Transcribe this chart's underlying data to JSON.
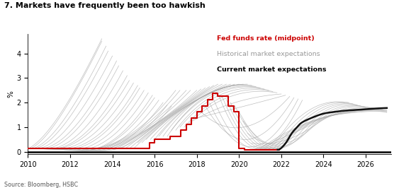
{
  "title": "7. Markets have frequently been too hawkish",
  "source": "Source: Bloomberg, HSBC",
  "legend": [
    {
      "label": "Fed funds rate (midpoint)",
      "color": "#cc0000",
      "bold": true
    },
    {
      "label": "Historical market expectations",
      "color": "#999999",
      "bold": false
    },
    {
      "label": "Current market expectations",
      "color": "#000000",
      "bold": true
    }
  ],
  "ylabel": "%",
  "xlim": [
    2010,
    2027.2
  ],
  "ylim": [
    -0.1,
    4.8
  ],
  "xticks": [
    2010,
    2012,
    2014,
    2016,
    2018,
    2020,
    2022,
    2024,
    2026
  ],
  "yticks": [
    0,
    1,
    2,
    3,
    4
  ],
  "fed_funds_rate": {
    "x": [
      2010.0,
      2015.75,
      2015.75,
      2016.0,
      2016.0,
      2016.75,
      2016.75,
      2017.25,
      2017.25,
      2017.5,
      2017.5,
      2017.75,
      2017.75,
      2018.0,
      2018.0,
      2018.25,
      2018.25,
      2018.5,
      2018.5,
      2018.75,
      2018.75,
      2019.0,
      2019.0,
      2019.5,
      2019.5,
      2019.75,
      2019.75,
      2020.0,
      2020.0,
      2020.25,
      2020.25,
      2021.9
    ],
    "y": [
      0.12,
      0.12,
      0.375,
      0.375,
      0.5,
      0.5,
      0.625,
      0.625,
      0.875,
      0.875,
      1.125,
      1.125,
      1.375,
      1.375,
      1.625,
      1.625,
      1.875,
      1.875,
      2.125,
      2.125,
      2.375,
      2.375,
      2.25,
      2.25,
      1.875,
      1.875,
      1.625,
      1.625,
      0.125,
      0.125,
      0.08,
      0.08
    ]
  },
  "current_expectations": {
    "x": [
      2021.83,
      2022.0,
      2022.25,
      2022.5,
      2022.75,
      2023.0,
      2023.5,
      2024.0,
      2024.5,
      2025.0,
      2025.5,
      2026.0,
      2026.5,
      2027.0
    ],
    "y": [
      0.08,
      0.15,
      0.4,
      0.75,
      1.0,
      1.2,
      1.4,
      1.55,
      1.62,
      1.67,
      1.7,
      1.73,
      1.76,
      1.78
    ]
  },
  "historical_fan_early": [
    [
      2010.0,
      0.12,
      2011.5,
      1.5,
      2013.5,
      4.6
    ],
    [
      2010.1,
      0.12,
      2011.5,
      1.4,
      2013.5,
      4.5
    ],
    [
      2010.2,
      0.12,
      2011.7,
      1.3,
      2013.7,
      4.3
    ],
    [
      2010.3,
      0.12,
      2011.8,
      1.2,
      2013.8,
      4.1
    ],
    [
      2010.4,
      0.12,
      2012.0,
      1.1,
      2014.0,
      3.9
    ],
    [
      2010.5,
      0.12,
      2012.2,
      1.0,
      2014.2,
      3.7
    ],
    [
      2010.6,
      0.12,
      2012.3,
      0.9,
      2014.3,
      3.5
    ],
    [
      2010.7,
      0.12,
      2012.5,
      0.8,
      2014.5,
      3.3
    ],
    [
      2010.8,
      0.12,
      2012.7,
      0.75,
      2014.7,
      3.1
    ],
    [
      2010.9,
      0.12,
      2012.8,
      0.7,
      2014.8,
      2.9
    ],
    [
      2011.0,
      0.12,
      2013.0,
      0.65,
      2015.0,
      2.8
    ],
    [
      2011.1,
      0.12,
      2013.2,
      0.6,
      2015.2,
      2.7
    ],
    [
      2011.3,
      0.12,
      2013.3,
      0.55,
      2015.3,
      2.6
    ],
    [
      2011.5,
      0.12,
      2013.5,
      0.5,
      2015.5,
      2.5
    ],
    [
      2011.7,
      0.12,
      2013.7,
      0.45,
      2015.7,
      2.4
    ],
    [
      2011.9,
      0.12,
      2013.9,
      0.4,
      2015.9,
      2.3
    ],
    [
      2012.1,
      0.12,
      2014.0,
      0.4,
      2016.0,
      2.2
    ],
    [
      2012.3,
      0.12,
      2014.2,
      0.38,
      2016.2,
      2.1
    ],
    [
      2012.5,
      0.12,
      2014.4,
      0.36,
      2016.4,
      2.0
    ],
    [
      2012.7,
      0.12,
      2014.6,
      0.34,
      2016.6,
      1.9
    ],
    [
      2012.9,
      0.12,
      2014.8,
      0.32,
      2016.8,
      1.85
    ]
  ],
  "historical_fan_mid": [
    [
      2013.0,
      0.12,
      2015.0,
      0.8,
      2017.0,
      2.5
    ],
    [
      2013.2,
      0.12,
      2015.2,
      0.85,
      2017.2,
      2.5
    ],
    [
      2013.4,
      0.12,
      2015.4,
      0.9,
      2017.5,
      2.5
    ],
    [
      2013.6,
      0.12,
      2015.6,
      0.95,
      2017.7,
      2.5
    ],
    [
      2013.8,
      0.12,
      2015.8,
      1.0,
      2018.0,
      2.5
    ],
    [
      2014.0,
      0.12,
      2016.0,
      1.1,
      2018.2,
      2.55
    ],
    [
      2014.2,
      0.12,
      2016.2,
      1.2,
      2018.4,
      2.6
    ],
    [
      2014.4,
      0.12,
      2016.4,
      1.3,
      2018.6,
      2.65
    ],
    [
      2014.6,
      0.12,
      2016.6,
      1.4,
      2018.8,
      2.7
    ],
    [
      2014.8,
      0.12,
      2016.8,
      1.5,
      2019.0,
      2.75
    ],
    [
      2015.0,
      0.12,
      2017.0,
      1.6,
      2019.2,
      2.75
    ],
    [
      2015.2,
      0.37,
      2017.2,
      1.7,
      2019.4,
      2.75
    ],
    [
      2015.4,
      0.37,
      2017.4,
      1.8,
      2019.6,
      2.75
    ],
    [
      2015.6,
      0.5,
      2017.6,
      1.9,
      2019.8,
      2.75
    ],
    [
      2015.8,
      0.5,
      2017.8,
      2.0,
      2020.0,
      2.75
    ],
    [
      2016.0,
      0.5,
      2018.0,
      2.1,
      2020.2,
      2.75
    ],
    [
      2016.2,
      0.625,
      2018.2,
      2.2,
      2020.4,
      2.75
    ],
    [
      2016.4,
      0.625,
      2018.4,
      2.3,
      2020.6,
      2.7
    ],
    [
      2016.6,
      0.625,
      2018.6,
      2.35,
      2020.8,
      2.65
    ],
    [
      2016.8,
      0.875,
      2018.8,
      2.375,
      2021.0,
      2.6
    ],
    [
      2017.0,
      0.875,
      2019.0,
      2.375,
      2021.2,
      2.55
    ],
    [
      2017.2,
      1.0,
      2019.2,
      2.35,
      2021.4,
      2.5
    ],
    [
      2017.4,
      1.0,
      2019.4,
      2.3,
      2021.6,
      2.45
    ],
    [
      2017.6,
      1.125,
      2019.6,
      2.25,
      2021.8,
      2.4
    ],
    [
      2017.8,
      1.25,
      2019.8,
      2.0,
      2022.0,
      2.35
    ],
    [
      2018.0,
      1.375,
      2020.0,
      1.8,
      2022.2,
      2.3
    ],
    [
      2018.2,
      1.625,
      2020.2,
      1.0,
      2022.4,
      2.25
    ],
    [
      2018.4,
      1.875,
      2020.4,
      0.5,
      2022.6,
      2.2
    ],
    [
      2018.6,
      2.0,
      2020.6,
      0.2,
      2022.8,
      2.15
    ],
    [
      2018.8,
      2.125,
      2020.8,
      0.12,
      2023.0,
      2.1
    ]
  ],
  "historical_fan_recent": [
    [
      2019.0,
      2.375,
      2021.0,
      0.12,
      2023.0,
      1.5,
      2025.0,
      2.0
    ],
    [
      2019.2,
      2.25,
      2021.2,
      0.12,
      2023.2,
      1.5,
      2025.2,
      2.0
    ],
    [
      2019.4,
      2.125,
      2021.4,
      0.12,
      2023.4,
      1.5,
      2025.4,
      1.95
    ],
    [
      2019.6,
      2.0,
      2021.6,
      0.12,
      2023.6,
      1.5,
      2025.6,
      1.9
    ],
    [
      2019.8,
      1.875,
      2021.8,
      0.12,
      2023.8,
      1.5,
      2025.8,
      1.85
    ],
    [
      2020.0,
      1.625,
      2022.0,
      0.15,
      2024.0,
      1.5,
      2026.0,
      1.8
    ],
    [
      2020.2,
      1.25,
      2022.2,
      0.25,
      2024.2,
      1.52,
      2026.2,
      1.78
    ],
    [
      2020.4,
      0.75,
      2022.4,
      0.4,
      2024.4,
      1.54,
      2026.4,
      1.76
    ],
    [
      2020.6,
      0.35,
      2022.6,
      0.6,
      2024.6,
      1.56,
      2026.6,
      1.74
    ],
    [
      2020.8,
      0.12,
      2022.8,
      0.85,
      2024.8,
      1.58,
      2026.8,
      1.72
    ],
    [
      2021.0,
      0.12,
      2023.0,
      1.1,
      2025.0,
      1.6,
      2027.0,
      1.7
    ],
    [
      2021.2,
      0.12,
      2023.2,
      1.15,
      2025.2,
      1.62,
      2027.0,
      1.68
    ],
    [
      2021.4,
      0.12,
      2023.4,
      1.2,
      2025.4,
      1.64,
      2027.0,
      1.65
    ],
    [
      2021.6,
      0.12,
      2023.6,
      1.25,
      2025.6,
      1.63,
      2027.0,
      1.62
    ],
    [
      2021.75,
      0.12,
      2023.8,
      1.3,
      2025.8,
      1.62,
      2027.0,
      1.6
    ]
  ]
}
